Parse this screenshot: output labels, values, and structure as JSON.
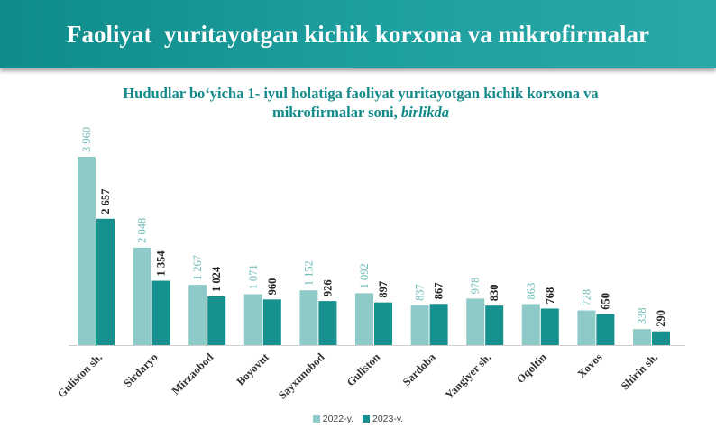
{
  "header": {
    "title": "Faoliyat  yuritayotgan kichik korxona va mikrofirmalar"
  },
  "chart_data": {
    "type": "bar",
    "title_line1": "Hududlar bo‘yicha 1- iyul holatiga faoliyat yuritayotgan kichik korxona va",
    "title_line2": "mikrofirmalar soni,",
    "title_unit": "birlikda",
    "categories": [
      "Guliston sh.",
      "Sirdaryo",
      "Mirzaobod",
      "Boyovut",
      "Sayxunobod",
      "Guliston",
      "Sardoba",
      "Yangiyer sh.",
      "Oqoltin",
      "Xovos",
      "Shirin sh."
    ],
    "series": [
      {
        "name": "2022-y.",
        "color": "#8ecac7",
        "values": [
          3960,
          2048,
          1267,
          1071,
          1152,
          1092,
          837,
          978,
          863,
          728,
          338
        ],
        "labels": [
          "3 960",
          "2 048",
          "1 267",
          "1 071",
          "1 152",
          "1 092",
          "837",
          "978",
          "863",
          "728",
          "338"
        ]
      },
      {
        "name": "2023-y.",
        "color": "#16918f",
        "values": [
          2657,
          1354,
          1024,
          960,
          926,
          897,
          867,
          830,
          768,
          650,
          290
        ],
        "labels": [
          "2 657",
          "1 354",
          "1 024",
          "960",
          "926",
          "897",
          "867",
          "830",
          "768",
          "650",
          "290"
        ]
      }
    ],
    "legend_position": "bottom",
    "grid": false
  }
}
